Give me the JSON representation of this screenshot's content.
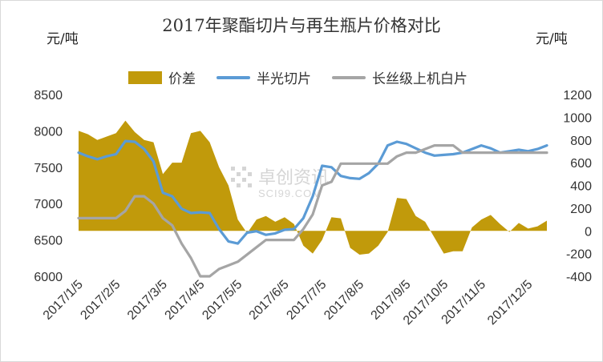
{
  "chart_data": {
    "type": "line+area",
    "title": "2017年聚酯切片与再生瓶片价格对比",
    "ylabel_left": "元/吨",
    "ylabel_right": "元/吨",
    "ylim_left": [
      6000,
      8500
    ],
    "ylim_right": [
      -400,
      1200
    ],
    "yticks_left": [
      6000,
      6500,
      7000,
      7500,
      8000,
      8500
    ],
    "yticks_right": [
      -400,
      -200,
      0,
      200,
      400,
      600,
      800,
      1000,
      1200
    ],
    "x_tick_labels": [
      "2017/1/5",
      "2017/2/5",
      "2017/3/5",
      "2017/4/5",
      "2017/5/5",
      "2017/6/5",
      "2017/7/5",
      "2017/8/5",
      "2017/9/5",
      "2017/10/5",
      "2017/11/5",
      "2017/12/5"
    ],
    "legend_position": "top",
    "grid": false,
    "watermark": {
      "cn": "卓创资讯",
      "en": "SCI99.COM"
    },
    "series": [
      {
        "name": "价差",
        "type": "area",
        "axis": "right",
        "color": "#c19a0b",
        "values": [
          880,
          850,
          800,
          830,
          860,
          970,
          870,
          800,
          780,
          500,
          600,
          600,
          860,
          880,
          780,
          560,
          400,
          100,
          -20,
          100,
          130,
          80,
          120,
          60,
          -130,
          -200,
          -80,
          120,
          110,
          -150,
          -210,
          -200,
          -130,
          -10,
          290,
          280,
          130,
          80,
          -60,
          -200,
          -180,
          -180,
          30,
          100,
          140,
          60,
          -10,
          70,
          20,
          40,
          90
        ]
      },
      {
        "name": "半光切片",
        "type": "line",
        "axis": "left",
        "color": "#5b9bd5",
        "values": [
          7700,
          7650,
          7610,
          7650,
          7680,
          7860,
          7850,
          7750,
          7580,
          7150,
          7100,
          6930,
          6870,
          6880,
          6870,
          6650,
          6480,
          6450,
          6600,
          6620,
          6570,
          6590,
          6640,
          6650,
          6800,
          7100,
          7520,
          7500,
          7380,
          7350,
          7340,
          7420,
          7550,
          7800,
          7850,
          7820,
          7760,
          7700,
          7660,
          7670,
          7680,
          7700,
          7750,
          7800,
          7760,
          7700,
          7720,
          7740,
          7720,
          7750,
          7800
        ]
      },
      {
        "name": "长丝级上机白片",
        "type": "line",
        "axis": "left",
        "color": "#a5a5a5",
        "values": [
          6800,
          6800,
          6800,
          6800,
          6800,
          6900,
          7100,
          7100,
          7000,
          6800,
          6700,
          6450,
          6250,
          6000,
          6000,
          6100,
          6150,
          6200,
          6300,
          6400,
          6500,
          6500,
          6500,
          6500,
          6650,
          6850,
          7250,
          7300,
          7550,
          7550,
          7550,
          7550,
          7550,
          7550,
          7650,
          7700,
          7700,
          7750,
          7800,
          7800,
          7800,
          7700,
          7700,
          7700,
          7700,
          7700,
          7700,
          7700,
          7700,
          7700,
          7700
        ]
      }
    ]
  }
}
